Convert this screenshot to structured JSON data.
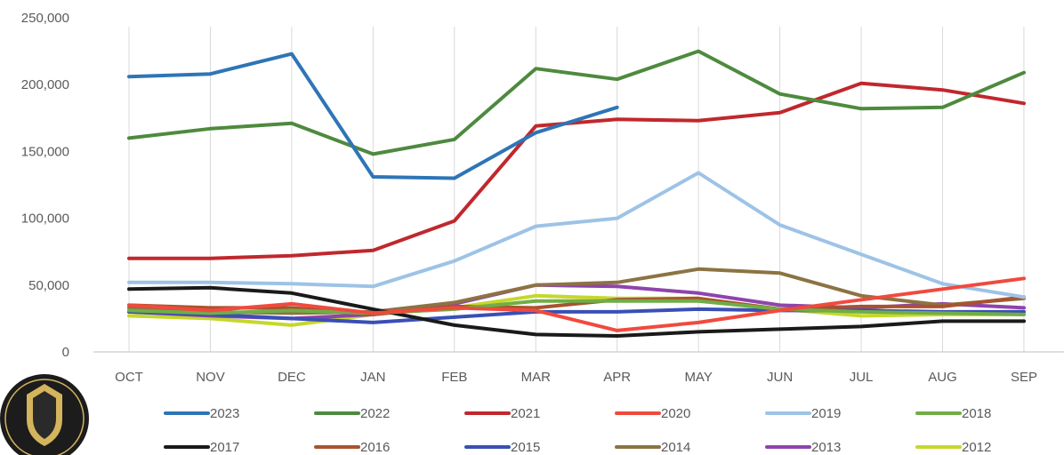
{
  "chart_data": {
    "type": "line",
    "categories": [
      "OCT",
      "NOV",
      "DEC",
      "JAN",
      "FEB",
      "MAR",
      "APR",
      "MAY",
      "JUN",
      "JUL",
      "AUG",
      "SEP"
    ],
    "ylim": [
      0,
      250000
    ],
    "yticks": [
      0,
      50000,
      100000,
      150000,
      200000,
      250000
    ],
    "ytick_labels": [
      "0",
      "50,000",
      "100,000",
      "150,000",
      "200,000",
      "250,000"
    ],
    "grid": "vertical",
    "legend_position": "bottom",
    "series": [
      {
        "name": "2023",
        "color": "#2E75B6",
        "values": [
          206000,
          208000,
          223000,
          131000,
          130000,
          164000,
          183000,
          null,
          null,
          null,
          null,
          null
        ]
      },
      {
        "name": "2022",
        "color": "#4E8A3E",
        "values": [
          160000,
          167000,
          171000,
          148000,
          159000,
          212000,
          204000,
          225000,
          193000,
          182000,
          183000,
          209000
        ]
      },
      {
        "name": "2021",
        "color": "#C0282D",
        "values": [
          70000,
          70000,
          72000,
          76000,
          98000,
          169000,
          174000,
          173000,
          179000,
          201000,
          196000,
          186000
        ]
      },
      {
        "name": "2020",
        "color": "#F04A3E",
        "values": [
          35000,
          31000,
          36000,
          29000,
          33000,
          31000,
          16000,
          22000,
          31000,
          39000,
          47000,
          55000
        ]
      },
      {
        "name": "2019",
        "color": "#9DC3E6",
        "values": [
          52000,
          52000,
          51000,
          49000,
          68000,
          94000,
          100000,
          134000,
          95000,
          73000,
          51000,
          41000
        ]
      },
      {
        "name": "2018",
        "color": "#70AD47",
        "values": [
          31000,
          29000,
          31000,
          29000,
          32000,
          38000,
          38000,
          38000,
          32000,
          30000,
          29000,
          28000
        ]
      },
      {
        "name": "2017",
        "color": "#1A1A1A",
        "values": [
          47000,
          48000,
          44000,
          32000,
          20000,
          13000,
          12000,
          15000,
          17000,
          19000,
          23000,
          23000
        ]
      },
      {
        "name": "2016",
        "color": "#A8532F",
        "values": [
          35000,
          33000,
          33000,
          28000,
          34000,
          33000,
          39000,
          40000,
          32000,
          34000,
          34000,
          41000
        ]
      },
      {
        "name": "2015",
        "color": "#3A4FB5",
        "values": [
          30000,
          28000,
          25000,
          22000,
          26000,
          30000,
          30000,
          32000,
          31000,
          31000,
          30000,
          30000
        ]
      },
      {
        "name": "2014",
        "color": "#8C7342",
        "values": [
          33000,
          30000,
          29000,
          30000,
          37000,
          50000,
          52000,
          62000,
          59000,
          42000,
          35000,
          40000
        ]
      },
      {
        "name": "2013",
        "color": "#8E44AD",
        "values": [
          30000,
          27000,
          25000,
          28000,
          36000,
          50000,
          49000,
          44000,
          35000,
          33000,
          36000,
          33000
        ]
      },
      {
        "name": "2012",
        "color": "#C5D82A",
        "values": [
          27000,
          25000,
          20000,
          28000,
          33000,
          42000,
          40000,
          40000,
          32000,
          27000,
          28000,
          28000
        ]
      }
    ]
  }
}
